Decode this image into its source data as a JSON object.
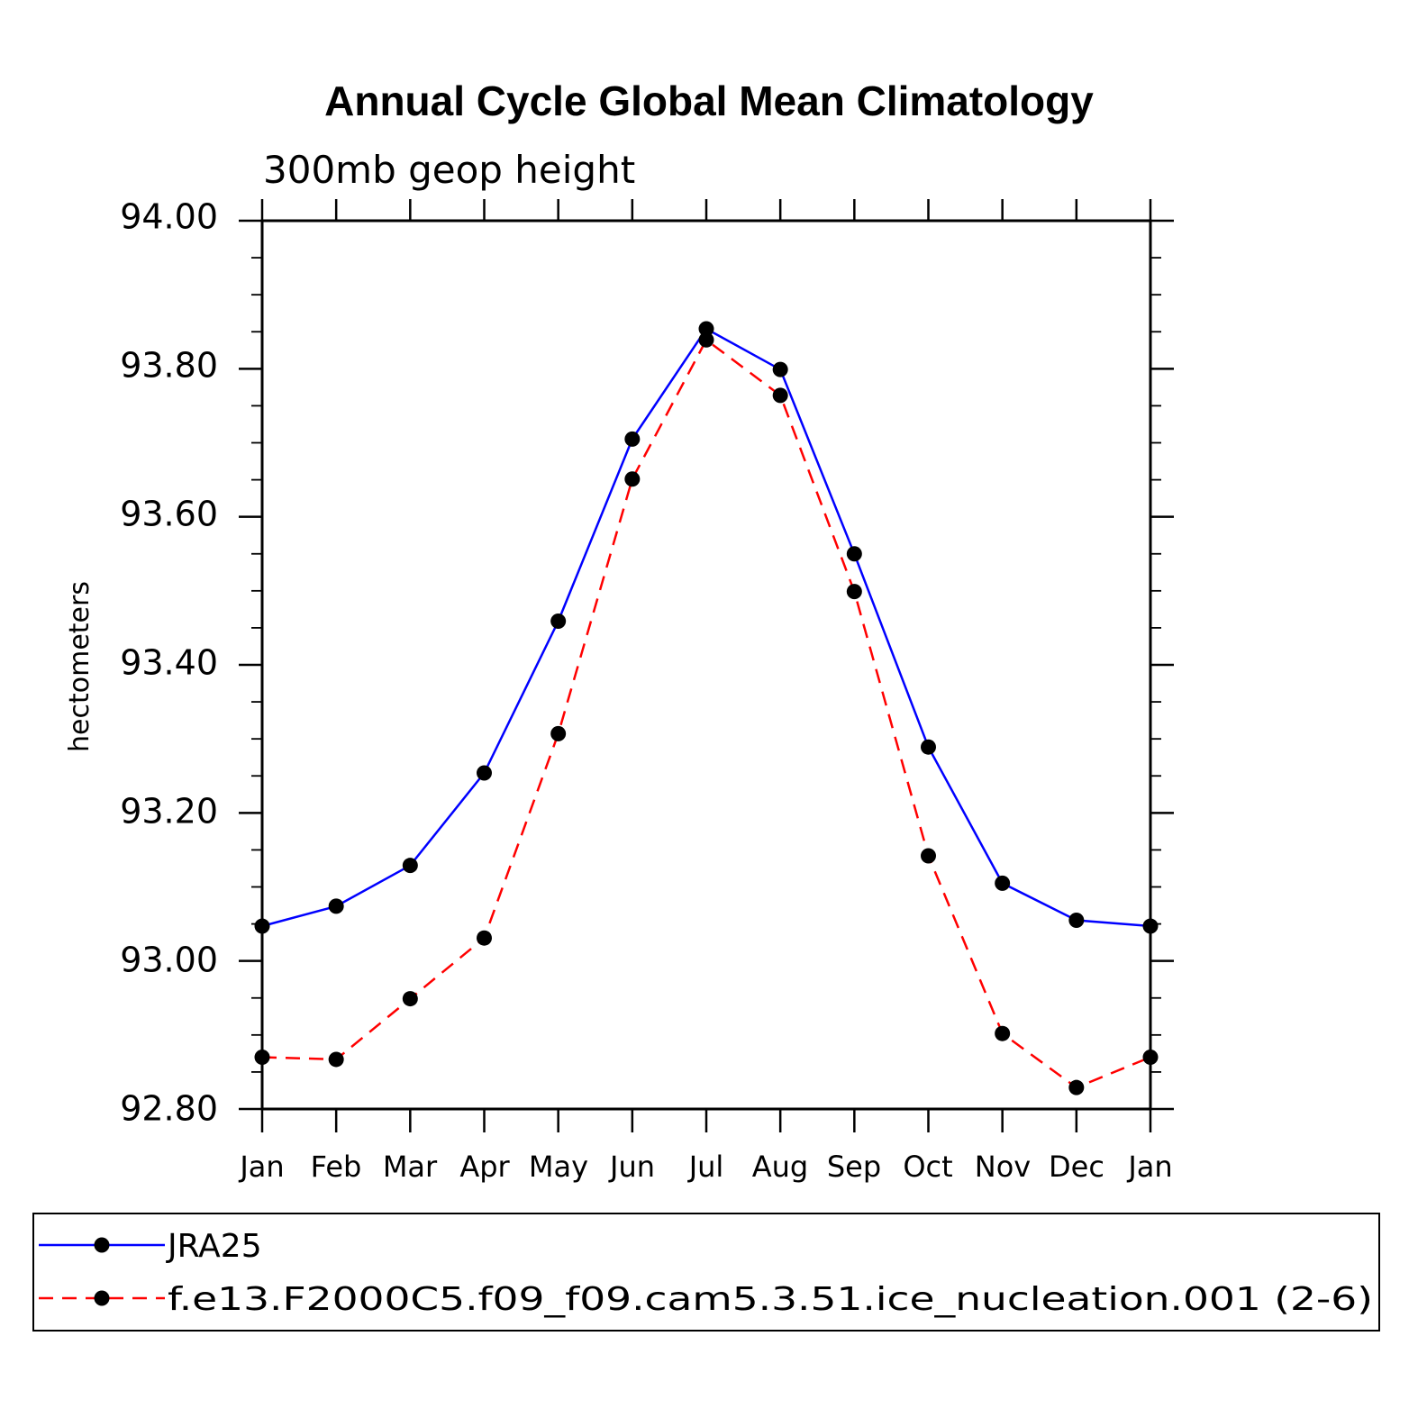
{
  "chart_data": {
    "type": "line",
    "title": "Annual Cycle Global Mean Climatology",
    "subtitle": "300mb geop height",
    "xlabel": "",
    "ylabel": "hectometers",
    "categories": [
      "Jan",
      "Feb",
      "Mar",
      "Apr",
      "May",
      "Jun",
      "Jul",
      "Aug",
      "Sep",
      "Oct",
      "Nov",
      "Dec",
      "Jan"
    ],
    "ylim": [
      92.8,
      94.0
    ],
    "yticks": [
      "92.80",
      "93.00",
      "93.20",
      "93.40",
      "93.60",
      "93.80",
      "94.00"
    ],
    "grid": false,
    "legend_position": "bottom",
    "series": [
      {
        "name": "JRA25",
        "color": "#0000ff",
        "dash": "solid",
        "marker": "filled-circle",
        "values": [
          93.047,
          93.074,
          93.129,
          93.254,
          93.459,
          93.705,
          93.854,
          93.799,
          93.55,
          93.289,
          93.105,
          93.055,
          93.047
        ]
      },
      {
        "name": "f.e13.F2000C5.f09_f09.cam5.3.51.ice_nucleation.001 (2-6)",
        "color": "#ff0000",
        "dash": "dashed",
        "marker": "filled-circle",
        "values": [
          92.87,
          92.867,
          92.949,
          93.031,
          93.307,
          93.651,
          93.839,
          93.764,
          93.499,
          93.142,
          92.902,
          92.829,
          92.87
        ]
      }
    ]
  }
}
